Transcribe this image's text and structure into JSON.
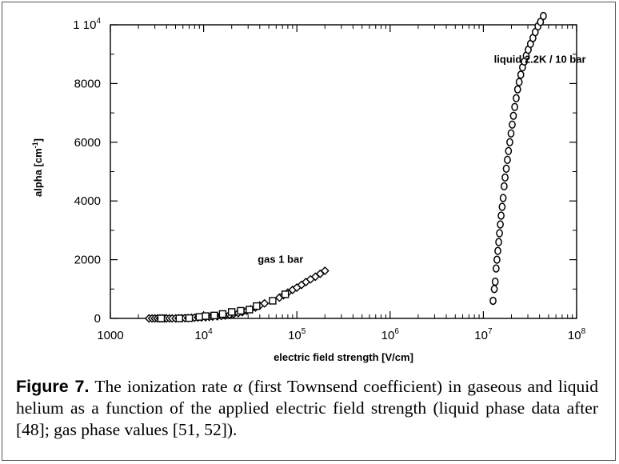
{
  "figure": {
    "label": "Figure 7.",
    "caption_before": "The ionization rate",
    "caption_symbol": "α",
    "caption_after": "(first Townsend coefficient) in gaseous and liquid helium as a function of the applied electric field strength (liquid phase data after [48]; gas phase values [51, 52])."
  },
  "chart_data": {
    "type": "scatter",
    "xlabel": "electric field strength [V/cm]",
    "ylabel": "alpha [cm",
    "ylabel_sup": "-1",
    "ylabel_end": "]",
    "xscale": "log",
    "xlim": [
      1000,
      100000000
    ],
    "ylim": [
      0,
      10000
    ],
    "x_ticks": [
      {
        "value": 1000,
        "base": "1000",
        "exp": ""
      },
      {
        "value": 10000,
        "base": "10",
        "exp": "4"
      },
      {
        "value": 100000,
        "base": "10",
        "exp": "5"
      },
      {
        "value": 1000000,
        "base": "10",
        "exp": "6"
      },
      {
        "value": 10000000,
        "base": "10",
        "exp": "7"
      },
      {
        "value": 100000000,
        "base": "10",
        "exp": "8"
      }
    ],
    "y_ticks": [
      {
        "value": 0,
        "base": "0",
        "exp": ""
      },
      {
        "value": 2000,
        "base": "2000",
        "exp": ""
      },
      {
        "value": 4000,
        "base": "4000",
        "exp": ""
      },
      {
        "value": 6000,
        "base": "6000",
        "exp": ""
      },
      {
        "value": 8000,
        "base": "8000",
        "exp": ""
      },
      {
        "value": 10000,
        "base": "1 10",
        "exp": "4"
      }
    ],
    "annotations": [
      {
        "text": "gas 1 bar",
        "x": 38000,
        "y": 1900
      },
      {
        "text": "liquid 2.2K / 10 bar",
        "x": 13000000,
        "y": 8700
      }
    ],
    "grid": false,
    "series": [
      {
        "marker": "diamond",
        "points": [
          [
            2600,
            0
          ],
          [
            2800,
            0
          ],
          [
            3000,
            0
          ],
          [
            3200,
            0
          ],
          [
            3400,
            0
          ],
          [
            3600,
            0
          ],
          [
            3800,
            0
          ],
          [
            4000,
            0
          ],
          [
            4300,
            0
          ],
          [
            4600,
            0
          ],
          [
            5000,
            0
          ],
          [
            5400,
            5
          ],
          [
            5800,
            5
          ],
          [
            6300,
            10
          ],
          [
            6800,
            15
          ],
          [
            7400,
            20
          ],
          [
            8000,
            25
          ],
          [
            8700,
            30
          ],
          [
            9500,
            35
          ],
          [
            10500,
            40
          ],
          [
            11500,
            50
          ],
          [
            12500,
            60
          ],
          [
            14000,
            70
          ],
          [
            15500,
            85
          ],
          [
            17000,
            100
          ],
          [
            19000,
            125
          ],
          [
            21000,
            150
          ],
          [
            23500,
            180
          ],
          [
            26000,
            215
          ],
          [
            29000,
            260
          ],
          [
            32000,
            310
          ],
          [
            36000,
            370
          ],
          [
            40000,
            440
          ],
          [
            45000,
            510
          ],
          [
            65000,
            710
          ],
          [
            72000,
            790
          ],
          [
            80000,
            880
          ],
          [
            90000,
            970
          ],
          [
            100000,
            1050
          ],
          [
            112000,
            1140
          ],
          [
            125000,
            1240
          ],
          [
            140000,
            1330
          ],
          [
            158000,
            1420
          ],
          [
            178000,
            1520
          ],
          [
            200000,
            1620
          ]
        ]
      },
      {
        "marker": "square",
        "points": [
          [
            3500,
            0
          ],
          [
            5500,
            0
          ],
          [
            7000,
            10
          ],
          [
            9000,
            50
          ],
          [
            10500,
            80
          ],
          [
            13000,
            100
          ],
          [
            16000,
            150
          ],
          [
            20000,
            220
          ],
          [
            25000,
            260
          ],
          [
            31000,
            300
          ],
          [
            37000,
            420
          ],
          [
            55000,
            600
          ],
          [
            75000,
            820
          ]
        ]
      },
      {
        "marker": "circle",
        "points": [
          [
            12700000,
            600
          ],
          [
            13100000,
            1000
          ],
          [
            13400000,
            1250
          ],
          [
            13700000,
            1700
          ],
          [
            14000000,
            2000
          ],
          [
            14300000,
            2300
          ],
          [
            14600000,
            2600
          ],
          [
            14900000,
            2900
          ],
          [
            15200000,
            3200
          ],
          [
            15500000,
            3500
          ],
          [
            15900000,
            3800
          ],
          [
            16300000,
            4100
          ],
          [
            16700000,
            4500
          ],
          [
            17100000,
            4800
          ],
          [
            17600000,
            5100
          ],
          [
            18100000,
            5400
          ],
          [
            18600000,
            5700
          ],
          [
            19200000,
            6000
          ],
          [
            19800000,
            6300
          ],
          [
            20400000,
            6600
          ],
          [
            21000000,
            6900
          ],
          [
            21700000,
            7200
          ],
          [
            22500000,
            7500
          ],
          [
            23300000,
            7800
          ],
          [
            24200000,
            8050
          ],
          [
            25200000,
            8300
          ],
          [
            26300000,
            8550
          ],
          [
            27500000,
            8750
          ],
          [
            28800000,
            8950
          ],
          [
            30300000,
            9150
          ],
          [
            32000000,
            9350
          ],
          [
            34000000,
            9550
          ],
          [
            36000000,
            9750
          ],
          [
            38500000,
            9950
          ],
          [
            41000000,
            10100
          ],
          [
            44000000,
            10300
          ]
        ]
      }
    ]
  }
}
